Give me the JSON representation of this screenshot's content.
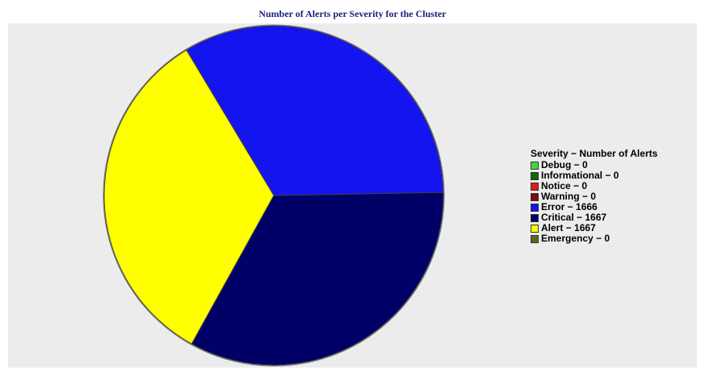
{
  "chart_data": {
    "type": "pie",
    "title": "Number of Alerts per Severity for the Cluster",
    "legend_title": "Severity − Number of Alerts",
    "legend_position": "right",
    "slices": [
      {
        "label": "Debug − 0",
        "name": "Debug",
        "value": 0,
        "color": "#3ddc3d"
      },
      {
        "label": "Informational − 0",
        "name": "Informational",
        "value": 0,
        "color": "#0a6b0a"
      },
      {
        "label": "Notice − 0",
        "name": "Notice",
        "value": 0,
        "color": "#e01b1b"
      },
      {
        "label": "Warning − 0",
        "name": "Warning",
        "value": 0,
        "color": "#7a0d0d"
      },
      {
        "label": "Error − 1666",
        "name": "Error",
        "value": 1666,
        "color": "#1414f0"
      },
      {
        "label": "Critical − 1667",
        "name": "Critical",
        "value": 1667,
        "color": "#000066"
      },
      {
        "label": "Alert − 1667",
        "name": "Alert",
        "value": 1667,
        "color": "#ffff00"
      },
      {
        "label": "Emergency − 0",
        "name": "Emergency",
        "value": 0,
        "color": "#5a6b1a"
      }
    ]
  }
}
